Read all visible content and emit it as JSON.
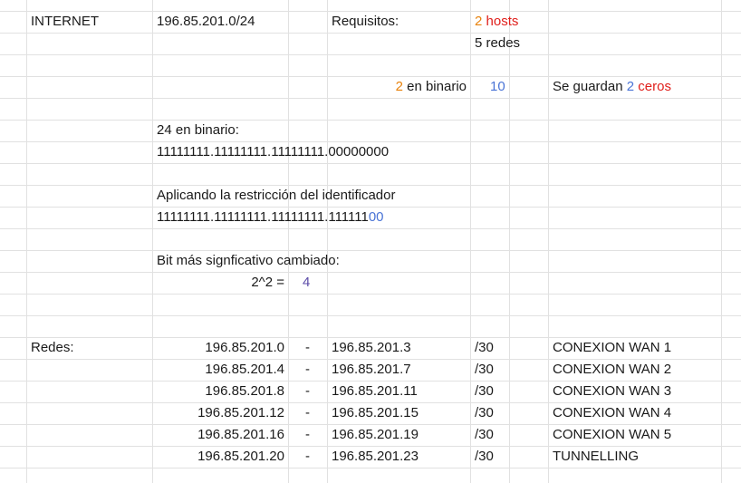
{
  "colors": {
    "orange": "#e8820c",
    "red": "#e0201c",
    "blue": "#4a74d6",
    "purple": "#5b4ba8"
  },
  "header": {
    "internet_label": "INTERNET",
    "internet_net": "196.85.201.0/24",
    "requisitos_label": "Requisitos:",
    "hosts_num": "2",
    "hosts_word": "hosts",
    "redes_req": "5 redes"
  },
  "binary_row": {
    "two": "2",
    "en_binario": "en binario",
    "bin_value": "10",
    "se_guardan": "Se guardan",
    "two_b": "2",
    "ceros": "ceros"
  },
  "mask": {
    "label_24": "24 en binario:",
    "bin_24": "11111111.11111111.11111111.00000000",
    "aplicando": "Aplicando la restricción del identificador",
    "bin_new_prefix": "11111111.11111111.11111111.111111",
    "bin_new_suffix": "00",
    "bit_label": "Bit más signficativo cambiado:",
    "power_expr": "2^2 =",
    "power_value": "4"
  },
  "redes": {
    "label": "Redes:",
    "rows": [
      {
        "start": "196.85.201.0",
        "dash": "-",
        "end": "196.85.201.3",
        "mask": "/30",
        "name": "CONEXION WAN 1"
      },
      {
        "start": "196.85.201.4",
        "dash": "-",
        "end": "196.85.201.7",
        "mask": "/30",
        "name": "CONEXION WAN 2"
      },
      {
        "start": "196.85.201.8",
        "dash": "-",
        "end": "196.85.201.11",
        "mask": "/30",
        "name": "CONEXION WAN 3"
      },
      {
        "start": "196.85.201.12",
        "dash": "-",
        "end": "196.85.201.15",
        "mask": "/30",
        "name": "CONEXION WAN 4"
      },
      {
        "start": "196.85.201.16",
        "dash": "-",
        "end": "196.85.201.19",
        "mask": "/30",
        "name": "CONEXION WAN 5"
      },
      {
        "start": "196.85.201.20",
        "dash": "-",
        "end": "196.85.201.23",
        "mask": "/30",
        "name": "TUNNELLING"
      }
    ]
  }
}
